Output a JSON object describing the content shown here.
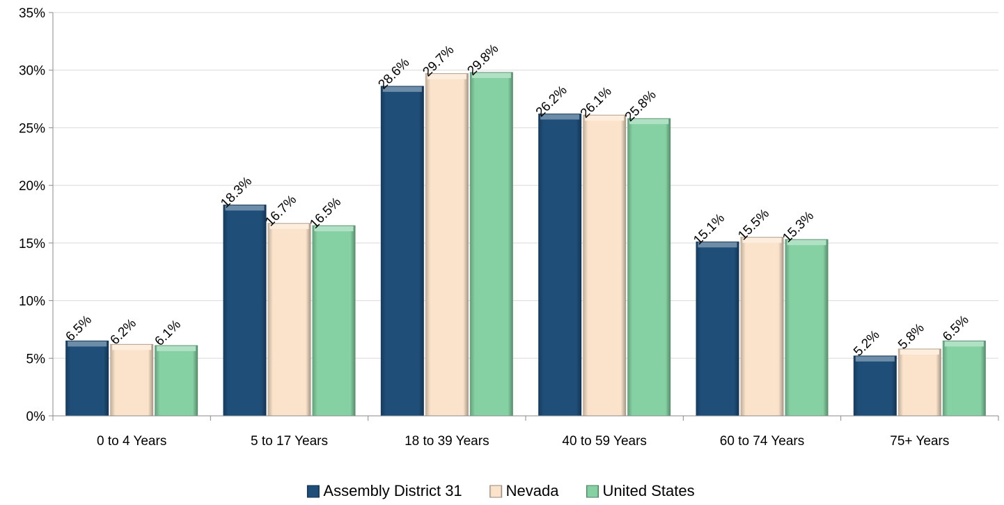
{
  "chart_data": {
    "type": "bar",
    "categories": [
      "0 to 4 Years",
      "5 to 17 Years",
      "18 to 39 Years",
      "40 to 59 Years",
      "60 to 74 Years",
      "75+ Years"
    ],
    "series": [
      {
        "name": "Assembly District 31",
        "values": [
          6.5,
          18.3,
          28.6,
          26.2,
          15.1,
          5.2
        ],
        "labels": [
          "6.5%",
          "18.3%",
          "28.6%",
          "26.2%",
          "15.1%",
          "5.2%"
        ],
        "color": "#1f4e79"
      },
      {
        "name": "Nevada",
        "values": [
          6.2,
          16.7,
          29.7,
          26.1,
          15.5,
          5.8
        ],
        "labels": [
          "6.2%",
          "16.7%",
          "29.7%",
          "26.1%",
          "15.5%",
          "5.8%"
        ],
        "color": "#fbe3cb"
      },
      {
        "name": "United States",
        "values": [
          6.1,
          16.5,
          29.8,
          25.8,
          15.3,
          6.5
        ],
        "labels": [
          "6.1%",
          "16.5%",
          "29.8%",
          "25.8%",
          "15.3%",
          "6.5%"
        ],
        "color": "#86d1a4"
      }
    ],
    "y_ticks": [
      "0%",
      "5%",
      "10%",
      "15%",
      "20%",
      "25%",
      "30%",
      "35%"
    ],
    "ylim": [
      0,
      35
    ],
    "grid": true,
    "legend": "bottom",
    "title": "",
    "xlabel": "",
    "ylabel": ""
  }
}
